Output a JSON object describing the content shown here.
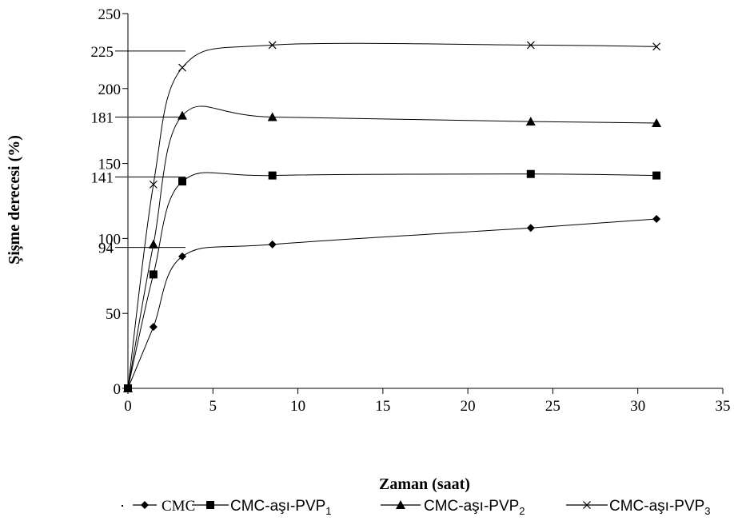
{
  "chart_data": {
    "type": "line",
    "xlabel": "Zaman (saat)",
    "ylabel": "Şişme derecesi (%)",
    "xlim": [
      0,
      35
    ],
    "ylim": [
      0,
      250
    ],
    "xticks": [
      0,
      5,
      10,
      15,
      20,
      25,
      30,
      35
    ],
    "yticks": [
      0,
      50,
      100,
      150,
      200,
      250
    ],
    "reference_lines": [
      {
        "label": "94",
        "value": 94
      },
      {
        "label": "141",
        "value": 141
      },
      {
        "label": "181",
        "value": 181
      },
      {
        "label": "225",
        "value": 225
      }
    ],
    "grid": false,
    "legend_position": "bottom",
    "series": [
      {
        "name": "CMC",
        "marker": "diamond",
        "x": [
          0,
          1.5,
          3.2,
          8.5,
          23.7,
          31.1
        ],
        "y": [
          0,
          41,
          88,
          96,
          107,
          113
        ]
      },
      {
        "name": "CMC-aşı-PVP",
        "name_subscript": "1",
        "marker": "square",
        "x": [
          0,
          1.5,
          3.2,
          8.5,
          23.7,
          31.1
        ],
        "y": [
          0,
          76,
          138,
          142,
          143,
          142
        ]
      },
      {
        "name": "CMC-aşı-PVP",
        "name_subscript": "2",
        "marker": "triangle",
        "x": [
          0,
          1.5,
          3.2,
          8.5,
          23.7,
          31.1
        ],
        "y": [
          0,
          96,
          182,
          181,
          178,
          177
        ]
      },
      {
        "name": "CMC-aşı-PVP",
        "name_subscript": "3",
        "marker": "x",
        "x": [
          0,
          1.5,
          3.2,
          8.5,
          23.7,
          31.1
        ],
        "y": [
          0,
          136,
          214,
          229,
          229,
          228
        ]
      }
    ]
  }
}
